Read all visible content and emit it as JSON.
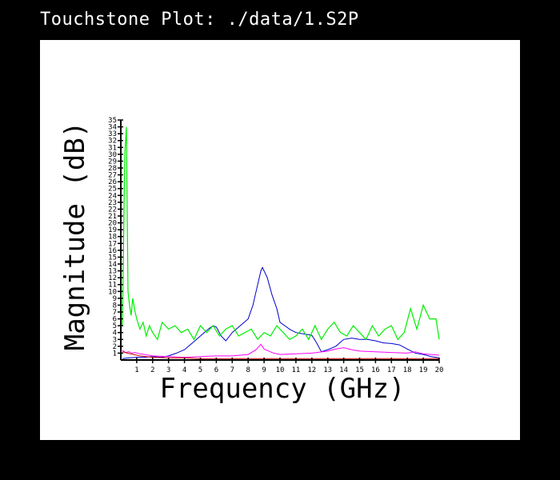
{
  "window": {
    "title": "Touchstone Plot: ./data/1.S2P"
  },
  "chart_data": {
    "type": "line",
    "xlabel": "Frequency (GHz)",
    "ylabel": "Magnitude (dB)",
    "xlim": [
      0,
      20
    ],
    "ylim": [
      0,
      35
    ],
    "xticks": [
      1,
      2,
      3,
      4,
      5,
      6,
      7,
      8,
      9,
      10,
      11,
      12,
      13,
      14,
      15,
      16,
      17,
      18,
      19,
      20
    ],
    "yticks": [
      1,
      2,
      3,
      4,
      5,
      6,
      7,
      8,
      9,
      10,
      11,
      12,
      13,
      14,
      15,
      16,
      17,
      18,
      19,
      20,
      21,
      22,
      23,
      24,
      25,
      26,
      27,
      28,
      29,
      30,
      31,
      32,
      33,
      34,
      35
    ],
    "grid": false,
    "legend": "none",
    "series": [
      {
        "color": "#0000cc",
        "x": [
          0.1,
          0.5,
          1,
          1.5,
          2,
          2.5,
          3,
          3.5,
          4,
          4.5,
          5,
          5.5,
          5.8,
          6,
          6.3,
          6.6,
          7,
          7.5,
          8,
          8.3,
          8.5,
          8.7,
          8.8,
          8.9,
          9,
          9.2,
          9.5,
          9.8,
          10,
          10.3,
          10.6,
          11,
          11.5,
          12,
          12.3,
          12.6,
          13,
          13.5,
          14,
          14.5,
          15,
          15.5,
          16,
          16.5,
          17,
          17.5,
          18,
          18.5,
          19,
          19.5,
          20
        ],
        "y": [
          0.2,
          0.3,
          0.4,
          0.4,
          0.5,
          0.4,
          0.6,
          1.0,
          1.5,
          2.5,
          3.5,
          4.5,
          5.0,
          4.8,
          3.5,
          2.8,
          4.0,
          5.0,
          6.0,
          8.0,
          10.0,
          12.0,
          13.0,
          13.5,
          13.0,
          12.0,
          9.5,
          7.5,
          5.5,
          5.0,
          4.5,
          4.0,
          3.8,
          3.6,
          2.5,
          1.2,
          1.5,
          2.0,
          3.0,
          3.2,
          3.0,
          3.0,
          2.8,
          2.5,
          2.4,
          2.2,
          1.6,
          1.0,
          0.8,
          0.5,
          0.3
        ]
      },
      {
        "color": "#00ee00",
        "x": [
          0.1,
          0.25,
          0.35,
          0.45,
          0.55,
          0.65,
          0.75,
          0.9,
          1.0,
          1.2,
          1.4,
          1.6,
          1.8,
          2.0,
          2.3,
          2.6,
          3.0,
          3.4,
          3.8,
          4.2,
          4.6,
          5.0,
          5.4,
          5.8,
          6.2,
          6.6,
          7.0,
          7.4,
          7.8,
          8.2,
          8.6,
          9.0,
          9.4,
          9.8,
          10.2,
          10.6,
          11.0,
          11.4,
          11.8,
          12.2,
          12.6,
          13.0,
          13.4,
          13.8,
          14.2,
          14.6,
          15.0,
          15.4,
          15.8,
          16.2,
          16.6,
          17.0,
          17.4,
          17.8,
          18.2,
          18.6,
          19.0,
          19.4,
          19.8,
          20.0
        ],
        "y": [
          5.0,
          30.0,
          34.0,
          10.0,
          8.0,
          6.5,
          9.0,
          7.0,
          6.0,
          4.5,
          5.5,
          3.5,
          5.0,
          4.0,
          3.0,
          5.5,
          4.5,
          5.0,
          4.0,
          4.5,
          3.0,
          5.0,
          4.0,
          5.0,
          3.5,
          4.5,
          5.0,
          3.5,
          4.0,
          4.5,
          3.0,
          4.0,
          3.5,
          5.0,
          4.0,
          3.0,
          3.5,
          4.5,
          3.0,
          5.0,
          3.0,
          4.5,
          5.5,
          4.0,
          3.5,
          5.0,
          4.0,
          3.0,
          5.0,
          3.5,
          4.5,
          5.0,
          3.0,
          4.0,
          7.5,
          4.5,
          8.0,
          6.0,
          6.0,
          3.0
        ]
      },
      {
        "color": "#ff00ff",
        "x": [
          0.1,
          0.3,
          0.5,
          0.7,
          0.9,
          1.2,
          1.5,
          2.0,
          3.0,
          4.0,
          5.0,
          6.0,
          7.0,
          8.0,
          8.5,
          8.8,
          9.0,
          9.3,
          9.6,
          10.0,
          11.0,
          12.0,
          13.0,
          13.5,
          14.0,
          14.5,
          15.0,
          16.0,
          17.0,
          18.0,
          18.5,
          19.0,
          19.5,
          20.0
        ],
        "y": [
          1.4,
          1.1,
          1.2,
          1.0,
          1.1,
          0.9,
          0.8,
          0.6,
          0.5,
          0.4,
          0.5,
          0.6,
          0.6,
          0.8,
          1.5,
          2.3,
          1.6,
          1.3,
          1.0,
          0.8,
          0.9,
          1.0,
          1.3,
          1.6,
          1.8,
          1.5,
          1.3,
          1.2,
          1.1,
          1.0,
          1.2,
          0.9,
          0.8,
          0.7
        ]
      },
      {
        "color": "#cc0000",
        "x": [
          0.1,
          0.4,
          0.8,
          1.2,
          1.6,
          2.0,
          3.0,
          4.0,
          5.0,
          6.0,
          8.0,
          10.0,
          12.0,
          14.0,
          16.0,
          18.0,
          20.0
        ],
        "y": [
          1.2,
          1.0,
          0.8,
          0.6,
          0.5,
          0.4,
          0.3,
          0.3,
          0.2,
          0.2,
          0.2,
          0.2,
          0.2,
          0.2,
          0.2,
          0.2,
          0.2
        ]
      }
    ]
  }
}
